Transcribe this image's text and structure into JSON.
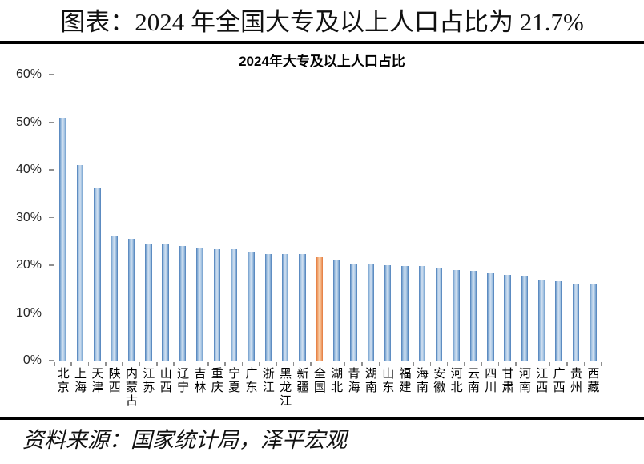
{
  "page": {
    "title": "图表：2024 年全国大专及以上人口占比为 21.7%",
    "source": "资料来源：国家统计局，泽平宏观"
  },
  "chart_data": {
    "type": "bar",
    "title": "2024年大专及以上人口占比",
    "categories": [
      "北京",
      "上海",
      "天津",
      "陕西",
      "内蒙古",
      "江苏",
      "山西",
      "辽宁",
      "吉林",
      "重庆",
      "宁夏",
      "广东",
      "浙江",
      "黑龙江",
      "新疆",
      "全国",
      "湖北",
      "青海",
      "湖南",
      "山东",
      "福建",
      "海南",
      "安徽",
      "河北",
      "云南",
      "四川",
      "甘肃",
      "河南",
      "江西",
      "广西",
      "贵州",
      "西藏"
    ],
    "values": [
      51.0,
      41.0,
      36.2,
      26.2,
      25.6,
      24.6,
      24.5,
      24.0,
      23.6,
      23.3,
      23.3,
      22.8,
      22.4,
      22.3,
      22.3,
      21.7,
      21.2,
      20.2,
      20.1,
      20.0,
      19.8,
      19.8,
      19.4,
      19.0,
      18.9,
      18.3,
      18.0,
      17.6,
      17.0,
      16.6,
      16.1,
      15.9
    ],
    "highlight_category": "全国",
    "highlight_index": 15,
    "xlabel": "",
    "ylabel": "",
    "ylim": [
      0,
      60
    ],
    "ytick_step": 10,
    "ytick_labels": [
      "0%",
      "10%",
      "20%",
      "30%",
      "40%",
      "50%",
      "60%"
    ],
    "grid": false,
    "legend": "none",
    "bar_style": {
      "edge": "#4a7cb8",
      "mid": "#9dbfe0",
      "light": "#d3e1f1"
    },
    "highlight_style": {
      "edge": "#e2773b",
      "mid": "#f3ab77",
      "light": "#fbd6b4"
    },
    "axis_color": "#8f8f8f"
  }
}
